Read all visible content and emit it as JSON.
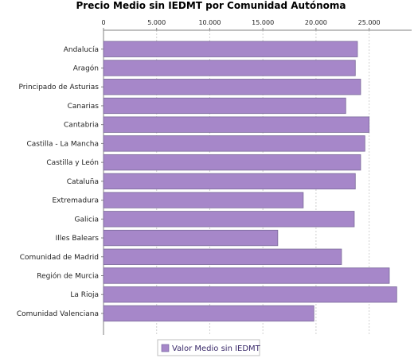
{
  "chart_data": {
    "type": "bar",
    "orientation": "horizontal",
    "title": "Precio Medio sin IEDMT por Comunidad Autónoma",
    "xlabel": "",
    "ylabel": "",
    "xlim": [
      0,
      29000
    ],
    "ticks": [
      0,
      5000,
      10000,
      15000,
      20000,
      25000
    ],
    "tick_labels": [
      "0",
      "5.000",
      "10.000",
      "15.000",
      "20.000",
      "25.000"
    ],
    "tick_position": "top",
    "grid": true,
    "legend_position": "bottom",
    "categories": [
      "Andalucía",
      "Aragón",
      "Principado de Asturias",
      "Canarias",
      "Cantabria",
      "Castilla - La Mancha",
      "Castilla y León",
      "Cataluña",
      "Extremadura",
      "Galicia",
      "Illes Balears",
      "Comunidad de Madrid",
      "Región de Murcia",
      "La Rioja",
      "Comunidad Valenciana"
    ],
    "series": [
      {
        "name": "Valor Medio sin IEDMT",
        "color": "#a687c9",
        "values": [
          23900,
          23700,
          24200,
          22800,
          25000,
          24600,
          24200,
          23700,
          18800,
          23600,
          16400,
          22400,
          26900,
          27600,
          19800
        ]
      }
    ]
  }
}
